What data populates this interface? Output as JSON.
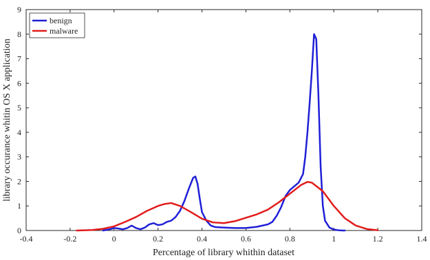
{
  "chart_data": {
    "type": "line",
    "title": "",
    "xlabel": "Percentage of library whithin dataset",
    "ylabel": "library occurance whitin OS X application",
    "xlim": [
      -0.4,
      1.4
    ],
    "ylim": [
      0,
      9
    ],
    "xticks": [
      -0.4,
      -0.2,
      0,
      0.2,
      0.4,
      0.6,
      0.8,
      1,
      1.2,
      1.4
    ],
    "xtick_labels": [
      "-0.4",
      "-0.2",
      "0",
      "0.2",
      "0.4",
      "0.6",
      "0.8",
      "1",
      "1.2",
      "1.4"
    ],
    "yticks": [
      0,
      1,
      2,
      3,
      4,
      5,
      6,
      7,
      8,
      9
    ],
    "ytick_labels": [
      "0",
      "1",
      "2",
      "3",
      "4",
      "5",
      "6",
      "7",
      "8",
      "9"
    ],
    "grid": false,
    "legend_position": "top-left",
    "series": [
      {
        "name": "benign",
        "color": "#1f1fd6",
        "x": [
          -0.05,
          -0.02,
          0.0,
          0.02,
          0.04,
          0.06,
          0.08,
          0.1,
          0.12,
          0.14,
          0.16,
          0.18,
          0.2,
          0.22,
          0.24,
          0.26,
          0.28,
          0.3,
          0.32,
          0.34,
          0.36,
          0.37,
          0.38,
          0.39,
          0.4,
          0.42,
          0.44,
          0.46,
          0.5,
          0.55,
          0.6,
          0.65,
          0.7,
          0.72,
          0.74,
          0.76,
          0.78,
          0.8,
          0.82,
          0.84,
          0.86,
          0.87,
          0.88,
          0.89,
          0.9,
          0.91,
          0.92,
          0.93,
          0.94,
          0.95,
          0.96,
          0.98,
          1.0,
          1.02,
          1.04,
          1.05
        ],
        "y": [
          0.0,
          0.05,
          0.1,
          0.08,
          0.05,
          0.1,
          0.2,
          0.1,
          0.05,
          0.12,
          0.25,
          0.3,
          0.22,
          0.25,
          0.35,
          0.4,
          0.55,
          0.8,
          1.2,
          1.7,
          2.15,
          2.2,
          1.9,
          1.3,
          0.75,
          0.4,
          0.2,
          0.14,
          0.12,
          0.1,
          0.1,
          0.15,
          0.25,
          0.35,
          0.6,
          0.95,
          1.4,
          1.65,
          1.8,
          1.95,
          2.3,
          3.0,
          4.0,
          5.2,
          6.5,
          8.0,
          7.8,
          5.5,
          2.6,
          1.0,
          0.4,
          0.12,
          0.04,
          0.01,
          0.0,
          0.0
        ]
      },
      {
        "name": "malware",
        "color": "#e21b1b",
        "x": [
          -0.17,
          -0.1,
          -0.05,
          0.0,
          0.05,
          0.1,
          0.15,
          0.2,
          0.23,
          0.26,
          0.3,
          0.35,
          0.4,
          0.45,
          0.5,
          0.55,
          0.6,
          0.65,
          0.7,
          0.75,
          0.8,
          0.85,
          0.88,
          0.9,
          0.95,
          1.0,
          1.05,
          1.1,
          1.15,
          1.2
        ],
        "y": [
          0.0,
          0.02,
          0.07,
          0.17,
          0.35,
          0.55,
          0.8,
          1.0,
          1.08,
          1.12,
          1.0,
          0.75,
          0.48,
          0.33,
          0.3,
          0.38,
          0.52,
          0.66,
          0.85,
          1.15,
          1.5,
          1.85,
          1.98,
          1.95,
          1.6,
          1.0,
          0.5,
          0.2,
          0.06,
          0.01
        ]
      }
    ]
  }
}
